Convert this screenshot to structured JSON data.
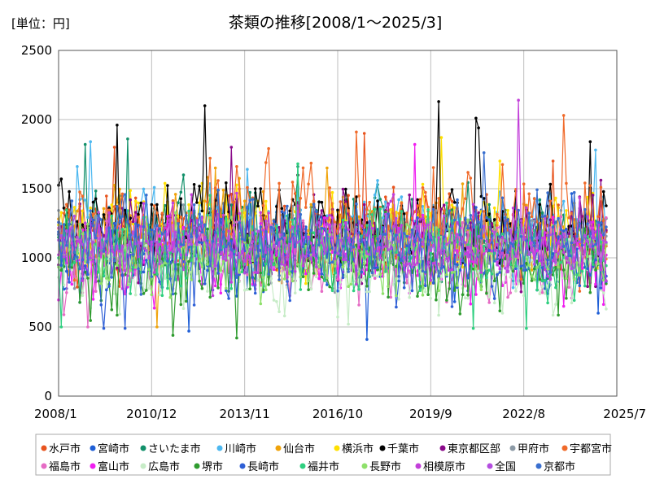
{
  "chart_data": {
    "type": "line",
    "title": "茶類の推移[2008/1～2025/3]",
    "unit_label": "[単位：円]",
    "x_ticks": [
      "2008/1",
      "2010/12",
      "2013/11",
      "2016/10",
      "2019/9",
      "2022/8",
      "2025/7"
    ],
    "y_ticks": [
      "0",
      "500",
      "1000",
      "1500",
      "2000",
      "2500"
    ],
    "ylim": [
      0,
      2500
    ],
    "x_range": [
      "2008/1",
      "2025/7"
    ],
    "data_end": "2025/3",
    "grid": true,
    "legend_placement": "bottom",
    "series": [
      {
        "name": "水戸市",
        "color": "#e8541e",
        "base": 1150,
        "spread": 220,
        "spikes": [
          [
            2009.75,
            1800
          ],
          [
            2017.6,
            1900
          ],
          [
            2023.5,
            1700
          ]
        ]
      },
      {
        "name": "宮崎市",
        "color": "#1f5fd6",
        "base": 1050,
        "spread": 220,
        "spikes": [
          [
            2012.1,
            470
          ],
          [
            2017.7,
            410
          ],
          [
            2024.9,
            600
          ]
        ]
      },
      {
        "name": "さいたま市",
        "color": "#12906a",
        "base": 1150,
        "spread": 230,
        "spikes": [
          [
            2008.8,
            1820
          ],
          [
            2010.2,
            1860
          ],
          [
            2015.5,
            1660
          ]
        ]
      },
      {
        "name": "川崎市",
        "color": "#4db8f0",
        "base": 1200,
        "spread": 230,
        "spikes": [
          [
            2008.6,
            1660
          ],
          [
            2009.0,
            1840
          ],
          [
            2013.9,
            1640
          ],
          [
            2024.8,
            1780
          ]
        ]
      },
      {
        "name": "仙台市",
        "color": "#f0a30a",
        "base": 1150,
        "spread": 220,
        "spikes": [
          [
            2011.1,
            500
          ],
          [
            2012.9,
            1650
          ],
          [
            2016.4,
            1650
          ]
        ]
      },
      {
        "name": "横浜市",
        "color": "#ffe000",
        "base": 1200,
        "spread": 220,
        "spikes": [
          [
            2020.0,
            1870
          ],
          [
            2021.8,
            1700
          ]
        ]
      },
      {
        "name": "千葉市",
        "color": "#000000",
        "base": 1200,
        "spread": 240,
        "spikes": [
          [
            2009.8,
            1960
          ],
          [
            2012.6,
            2100
          ],
          [
            2019.9,
            2130
          ],
          [
            2021.05,
            2010
          ],
          [
            2021.2,
            1940
          ],
          [
            2024.7,
            1840
          ]
        ]
      },
      {
        "name": "東京都区部",
        "color": "#8a0a8a",
        "base": 1150,
        "spread": 200,
        "spikes": [
          [
            2013.4,
            1800
          ]
        ]
      },
      {
        "name": "甲府市",
        "color": "#8c9aa6",
        "base": 1100,
        "spread": 200,
        "spikes": []
      },
      {
        "name": "宇都宮市",
        "color": "#f06a2a",
        "base": 1250,
        "spread": 250,
        "spikes": [
          [
            2014.6,
            1790
          ],
          [
            2017.3,
            1910
          ],
          [
            2023.8,
            2030
          ]
        ]
      },
      {
        "name": "福島市",
        "color": "#e56bc4",
        "base": 1000,
        "spread": 220,
        "spikes": [
          [
            2008.9,
            500
          ]
        ]
      },
      {
        "name": "富山市",
        "color": "#f01ef0",
        "base": 1000,
        "spread": 200,
        "spikes": [
          [
            2019.2,
            1820
          ]
        ]
      },
      {
        "name": "広島市",
        "color": "#c7ecc7",
        "base": 900,
        "spread": 200,
        "spikes": [
          [
            2017.1,
            520
          ],
          [
            2021.9,
            600
          ]
        ]
      },
      {
        "name": "堺市",
        "color": "#2e9b2e",
        "base": 950,
        "spread": 220,
        "spikes": [
          [
            2011.6,
            440
          ],
          [
            2013.6,
            420
          ]
        ]
      },
      {
        "name": "長崎市",
        "color": "#2e5fd6",
        "base": 1000,
        "spread": 220,
        "spikes": [
          [
            2009.4,
            490
          ],
          [
            2010.05,
            490
          ]
        ]
      },
      {
        "name": "福井市",
        "color": "#2ecf7f",
        "base": 1050,
        "spread": 220,
        "spikes": [
          [
            2008.1,
            500
          ],
          [
            2015.5,
            1680
          ],
          [
            2021.0,
            490
          ],
          [
            2022.7,
            490
          ]
        ]
      },
      {
        "name": "長野市",
        "color": "#8ee06a",
        "base": 1000,
        "spread": 200,
        "spikes": []
      },
      {
        "name": "相模原市",
        "color": "#c23fd9",
        "base": 1100,
        "spread": 220,
        "spikes": [
          [
            2022.45,
            2140
          ]
        ]
      },
      {
        "name": "全国",
        "color": "#b44de0",
        "base": 1100,
        "spread": 120,
        "spikes": []
      },
      {
        "name": "京都市",
        "color": "#3a6fcf",
        "base": 1150,
        "spread": 220,
        "spikes": [
          [
            2021.3,
            1760
          ]
        ]
      }
    ]
  }
}
